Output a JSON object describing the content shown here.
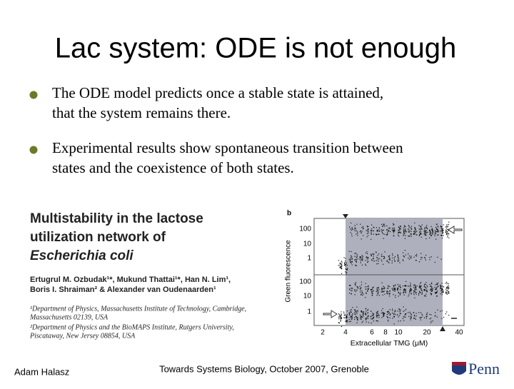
{
  "title": "Lac system: ODE is not enough",
  "bullets": [
    [
      "The ODE model predicts once a stable state is attained,",
      "that the system remains there."
    ],
    [
      "Experimental results show spontaneous transition between",
      "states and the coexistence of both states."
    ]
  ],
  "paper": {
    "title_lines": [
      "Multistability in the lactose",
      "utilization network of",
      "Escherichia coli"
    ],
    "authors": [
      "Ertugrul M. Ozbudak¹*, Mukund Thattai¹*, Han N. Lim¹,",
      "Boris I. Shraiman² & Alexander van Oudenaarden¹"
    ],
    "affiliations": [
      "¹Department of Physics, Massachusetts Institute of Technology, Cambridge,",
      "Massachusetts 02139, USA",
      "²Department of Physics and the BioMAPS Institute, Rutgers University,",
      "Piscataway, New Jersey 08854, USA"
    ]
  },
  "figure": {
    "panel_label": "b",
    "y_axis_label": "Green fluorescence",
    "y_ticks": [
      "100",
      "10",
      "1"
    ],
    "x_ticks": [
      "2",
      "4",
      "6",
      "8",
      "10",
      "20",
      "40"
    ],
    "x_axis_label": "Extracellular TMG (μM)"
  },
  "footer": {
    "left": "Adam Halasz",
    "center": "Towards Systems Biology, October 2007, Grenoble",
    "logo": "Penn"
  }
}
